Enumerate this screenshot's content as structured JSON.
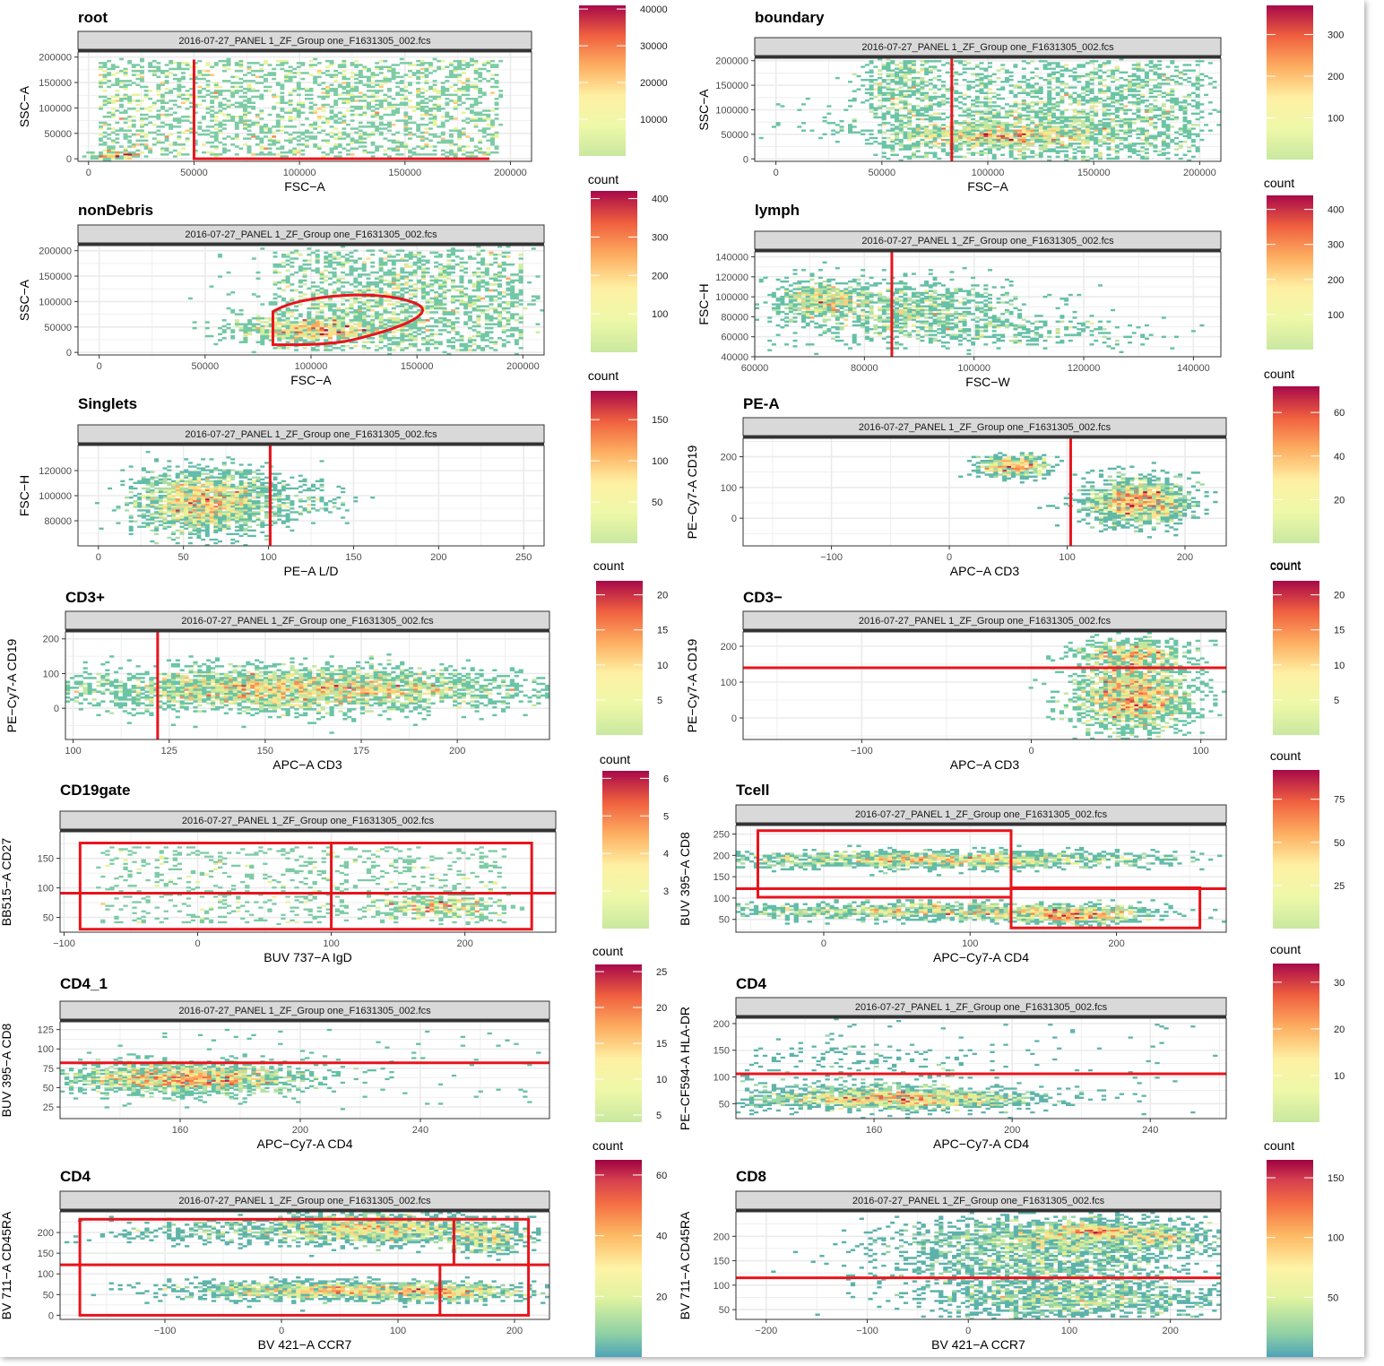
{
  "chart_data": [
    {
      "type": "heatmap",
      "title": "root",
      "strip": "2016-07-27_PANEL 1_ZF_Group one_F1631305_002.fcs",
      "xlabel": "FSC-A",
      "ylabel": "SSC-A",
      "xticks": [
        0,
        50000,
        100000,
        150000,
        200000
      ],
      "yticks": [
        0,
        50000,
        100000,
        150000,
        200000
      ],
      "xlim": [
        -5000,
        210000
      ],
      "ylim": [
        -5000,
        210000
      ],
      "legend_title": "",
      "legend_ticks": [
        10000,
        20000,
        30000,
        40000
      ],
      "legend_range": [
        0,
        41000
      ],
      "gates": [
        {
          "kind": "polyline",
          "points": [
            [
              50000,
              195000
            ],
            [
              50000,
              0
            ],
            [
              190000,
              0
            ]
          ]
        }
      ]
    },
    {
      "type": "heatmap",
      "title": "boundary",
      "strip": "2016-07-27_PANEL 1_ZF_Group one_F1631305_002.fcs",
      "xlabel": "FSC-A",
      "ylabel": "SSC-A",
      "xticks": [
        0,
        50000,
        100000,
        150000,
        200000
      ],
      "yticks": [
        0,
        50000,
        100000,
        150000,
        200000
      ],
      "xlim": [
        -10000,
        210000
      ],
      "ylim": [
        -5000,
        205000
      ],
      "legend_title": "count",
      "legend_ticks": [
        100,
        200,
        300
      ],
      "legend_range": [
        0,
        370
      ],
      "gates": [
        {
          "kind": "vline",
          "x": 83000
        }
      ]
    },
    {
      "type": "heatmap",
      "title": "nonDebris",
      "strip": "2016-07-27_PANEL 1_ZF_Group one_F1631305_002.fcs",
      "xlabel": "FSC-A",
      "ylabel": "SSC-A",
      "xticks": [
        0,
        50000,
        100000,
        150000,
        200000
      ],
      "yticks": [
        0,
        50000,
        100000,
        150000,
        200000
      ],
      "xlim": [
        -10000,
        210000
      ],
      "ylim": [
        -5000,
        210000
      ],
      "legend_title": "count",
      "legend_ticks": [
        100,
        200,
        300,
        400
      ],
      "legend_range": [
        0,
        420
      ],
      "gates": [
        {
          "kind": "ellipse-gate"
        }
      ]
    },
    {
      "type": "heatmap",
      "title": "lymph",
      "strip": "2016-07-27_PANEL 1_ZF_Group one_F1631305_002.fcs",
      "xlabel": "FSC-W",
      "ylabel": "FSC-H",
      "xticks": [
        60000,
        80000,
        100000,
        120000,
        140000
      ],
      "yticks": [
        40000,
        60000,
        80000,
        100000,
        120000,
        140000
      ],
      "xlim": [
        60000,
        145000
      ],
      "ylim": [
        40000,
        145000
      ],
      "legend_title": "count",
      "legend_ticks": [
        100,
        200,
        300,
        400
      ],
      "legend_range": [
        0,
        440
      ],
      "gates": [
        {
          "kind": "vline",
          "x": 85000
        }
      ]
    },
    {
      "type": "heatmap",
      "title": "Singlets",
      "strip": "2016-07-27_PANEL 1_ZF_Group one_F1631305_002.fcs",
      "xlabel": "PE-A L/D",
      "ylabel": "FSC-H",
      "xticks": [
        0,
        50,
        100,
        150,
        200,
        250
      ],
      "yticks": [
        80000,
        100000,
        120000
      ],
      "xlim": [
        -12,
        262
      ],
      "ylim": [
        60000,
        140000
      ],
      "legend_title": "count",
      "legend_ticks": [
        50,
        100,
        150
      ],
      "legend_range": [
        0,
        185
      ],
      "gates": [
        {
          "kind": "vline",
          "x": 101
        }
      ]
    },
    {
      "type": "heatmap",
      "title": "PE-A",
      "strip": "2016-07-27_PANEL 1_ZF_Group one_F1631305_002.fcs",
      "xlabel": "APC-A CD3",
      "ylabel": "PE-Cy7-A CD19",
      "xticks": [
        -100,
        0,
        100,
        200
      ],
      "yticks": [
        0,
        100,
        200
      ],
      "xlim": [
        -175,
        235
      ],
      "ylim": [
        -90,
        260
      ],
      "legend_title": "count",
      "legend_ticks": [
        20,
        40,
        60
      ],
      "legend_range": [
        0,
        72
      ],
      "gates": [
        {
          "kind": "vline",
          "x": 103
        }
      ]
    },
    {
      "type": "heatmap",
      "title": "CD3+",
      "strip": "2016-07-27_PANEL 1_ZF_Group one_F1631305_002.fcs",
      "xlabel": "APC-A CD3",
      "ylabel": "PE-Cy7-A CD19",
      "xticks": [
        100,
        125,
        150,
        175,
        200
      ],
      "yticks": [
        0,
        100,
        200
      ],
      "xlim": [
        98,
        224
      ],
      "ylim": [
        -90,
        220
      ],
      "legend_title": "count",
      "legend_ticks": [
        5,
        10,
        15,
        20
      ],
      "legend_range": [
        0,
        22
      ],
      "gates": [
        {
          "kind": "vline",
          "x": 122
        }
      ]
    },
    {
      "type": "heatmap",
      "title": "CD3−",
      "strip": "2016-07-27_PANEL 1_ZF_Group one_F1631305_002.fcs",
      "xlabel": "APC-A CD3",
      "ylabel": "PE-Cy7-A CD19",
      "xticks": [
        -100,
        0,
        100
      ],
      "yticks": [
        0,
        100,
        200
      ],
      "xlim": [
        -170,
        115
      ],
      "ylim": [
        -60,
        240
      ],
      "legend_title": "count",
      "legend_ticks": [
        5,
        10,
        15,
        20
      ],
      "legend_range": [
        0,
        22
      ],
      "gates": [
        {
          "kind": "hline",
          "y": 140
        }
      ]
    },
    {
      "type": "heatmap",
      "title": "CD19gate",
      "strip": "2016-07-27_PANEL 1_ZF_Group one_F1631305_002.fcs",
      "xlabel": "BUV 737-A IgD",
      "ylabel": "BB515-A CD27",
      "xticks": [
        -100,
        0,
        100,
        200
      ],
      "yticks": [
        50,
        100,
        150
      ],
      "xlim": [
        -103,
        268
      ],
      "ylim": [
        25,
        195
      ],
      "legend_title": "count",
      "legend_ticks": [
        3,
        4,
        5,
        6
      ],
      "legend_range": [
        2,
        6.2
      ],
      "gates": [
        {
          "kind": "rect",
          "x0": -88,
          "x1": 250,
          "y0": 30,
          "y1": 176
        },
        {
          "kind": "vline",
          "x": 100,
          "y0": 30,
          "y1": 176
        },
        {
          "kind": "hline",
          "y": 91
        }
      ]
    },
    {
      "type": "heatmap",
      "title": "Tcell",
      "strip": "2016-07-27_PANEL 1_ZF_Group one_F1631305_002.fcs",
      "xlabel": "APC-Cy7-A CD4",
      "ylabel": "BUV 395-A CD8",
      "xticks": [
        0,
        100,
        200
      ],
      "yticks": [
        50,
        100,
        150,
        200,
        250
      ],
      "xlim": [
        -60,
        275
      ],
      "ylim": [
        20,
        270
      ],
      "legend_title": "count",
      "legend_ticks": [
        25,
        50,
        75
      ],
      "legend_range": [
        0,
        92
      ],
      "gates": [
        {
          "kind": "rect",
          "x0": -45,
          "x1": 128,
          "y0": 102,
          "y1": 258
        },
        {
          "kind": "rect",
          "x0": 128,
          "x1": 257,
          "y0": 30,
          "y1": 124
        },
        {
          "kind": "hline",
          "y": 122
        }
      ]
    },
    {
      "type": "heatmap",
      "title": "CD4_1",
      "strip": "2016-07-27_PANEL 1_ZF_Group one_F1631305_002.fcs",
      "xlabel": "APC-Cy7-A CD4",
      "ylabel": "BUV 395-A CD8",
      "xticks": [
        160,
        200,
        240
      ],
      "yticks": [
        25,
        50,
        75,
        100,
        125
      ],
      "xlim": [
        120,
        283
      ],
      "ylim": [
        10,
        135
      ],
      "legend_title": "count",
      "legend_ticks": [
        5,
        10,
        15,
        20,
        25
      ],
      "legend_range": [
        4,
        26
      ],
      "gates": [
        {
          "kind": "hline",
          "y": 82
        }
      ]
    },
    {
      "type": "heatmap",
      "title": "CD4",
      "strip": "2016-07-27_PANEL 1_ZF_Group one_F1631305_002.fcs",
      "xlabel": "APC-Cy7-A CD4",
      "ylabel": "PE-CF594-A HLA-DR",
      "xticks": [
        160,
        200,
        240
      ],
      "yticks": [
        50,
        100,
        150,
        200
      ],
      "xlim": [
        120,
        262
      ],
      "ylim": [
        22,
        210
      ],
      "legend_title": "count",
      "legend_ticks": [
        10,
        20,
        30
      ],
      "legend_range": [
        0,
        34
      ],
      "gates": [
        {
          "kind": "hline",
          "y": 106
        }
      ]
    },
    {
      "type": "heatmap",
      "title": "CD4",
      "strip": "2016-07-27_PANEL 1_ZF_Group one_F1631305_002.fcs",
      "xlabel": "BV 421-A CCR7",
      "ylabel": "BV 711-A CD45RA",
      "xticks": [
        -100,
        0,
        100,
        200
      ],
      "yticks": [
        0,
        50,
        100,
        150,
        200
      ],
      "xlim": [
        -190,
        230
      ],
      "ylim": [
        -10,
        250
      ],
      "legend_title": "count",
      "legend_ticks": [
        20,
        40,
        60
      ],
      "legend_range": [
        0,
        65
      ],
      "gates": [
        {
          "kind": "rect",
          "x0": -173,
          "x1": 212,
          "y0": 0,
          "y1": 232
        },
        {
          "kind": "hline",
          "y": 122
        },
        {
          "kind": "vline",
          "x": 148,
          "y0": 122,
          "y1": 232
        },
        {
          "kind": "vline",
          "x": 136,
          "y0": 0,
          "y1": 122
        }
      ]
    },
    {
      "type": "heatmap",
      "title": "CD8",
      "strip": "2016-07-27_PANEL 1_ZF_Group one_F1631305_002.fcs",
      "xlabel": "BV 421-A CCR7",
      "ylabel": "BV 711-A CD45RA",
      "xticks": [
        -200,
        -100,
        0,
        100,
        200
      ],
      "yticks": [
        50,
        100,
        150,
        200
      ],
      "xlim": [
        -230,
        250
      ],
      "ylim": [
        30,
        250
      ],
      "legend_title": "count",
      "legend_ticks": [
        50,
        100,
        150
      ],
      "legend_range": [
        0,
        165
      ],
      "gates": [
        {
          "kind": "hline",
          "y": 115
        }
      ]
    }
  ]
}
